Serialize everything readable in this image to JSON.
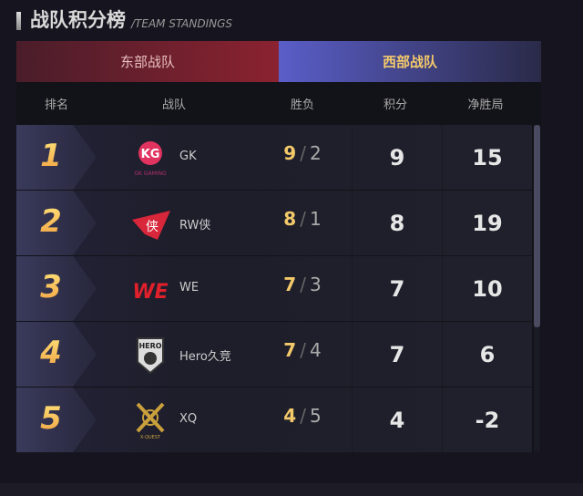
{
  "title": {
    "cn": "战队积分榜",
    "en": "/TEAM STANDINGS"
  },
  "tabs": [
    {
      "label": "东部战队",
      "active": false
    },
    {
      "label": "西部战队",
      "active": true
    }
  ],
  "headers": {
    "rank": "排名",
    "team": "战队",
    "wl": "胜负",
    "points": "积分",
    "net": "净胜局"
  },
  "rows": [
    {
      "rank": "1",
      "team": "GK",
      "logo_text": "GK GAMING",
      "wins": "9",
      "losses": "2",
      "points": "9",
      "net": "15"
    },
    {
      "rank": "2",
      "team": "RW侠",
      "logo_text": "侠",
      "wins": "8",
      "losses": "1",
      "points": "8",
      "net": "19"
    },
    {
      "rank": "3",
      "team": "WE",
      "logo_text": "WE",
      "wins": "7",
      "losses": "3",
      "points": "7",
      "net": "10"
    },
    {
      "rank": "4",
      "team": "Hero久竞",
      "logo_text": "HERO",
      "wins": "7",
      "losses": "4",
      "points": "7",
      "net": "6"
    },
    {
      "rank": "5",
      "team": "XQ",
      "logo_text": "X-QUEST",
      "wins": "4",
      "losses": "5",
      "points": "4",
      "net": "-2"
    }
  ],
  "separator": "/",
  "colors": {
    "east_tab": "#8b2230",
    "west_tab": "#5a5ec8",
    "accent": "#f3c96a"
  }
}
